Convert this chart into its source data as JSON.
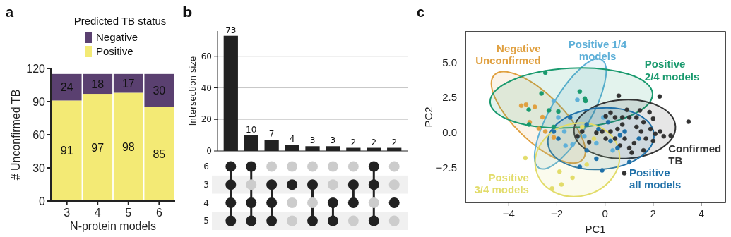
{
  "chart_data": [
    {
      "type": "bar",
      "title": "a",
      "stacked": true,
      "xlabel": "N-protein models",
      "ylabel": "# Unconfirmed TB",
      "categories": [
        "3",
        "4",
        "5",
        "6"
      ],
      "legend_title": "Predicted TB status",
      "legend": "top",
      "series": [
        {
          "name": "Positive",
          "color": "#f3ea75",
          "values": [
            91,
            97,
            98,
            85
          ]
        },
        {
          "name": "Negative",
          "color": "#5a4070",
          "values": [
            24,
            18,
            17,
            30
          ]
        }
      ],
      "ylim": [
        0,
        120
      ],
      "yticks": [
        0,
        30,
        60,
        90,
        120
      ],
      "data_labels": true
    },
    {
      "type": "bar",
      "title": "b",
      "ylabel": "Intersection size",
      "categories": [
        null,
        null,
        null,
        null,
        null,
        null,
        null,
        null,
        null
      ],
      "values": [
        73,
        10,
        7,
        4,
        3,
        3,
        2,
        2,
        2
      ],
      "color": "#222222",
      "ylim": [
        0,
        76
      ],
      "yticks": [
        0,
        20,
        40,
        60
      ],
      "grid": "y",
      "data_labels": true,
      "annotations": [
        "6",
        "3",
        "4",
        "5"
      ]
    },
    {
      "type": "scatter",
      "title": "c",
      "xlabel": "PC1",
      "ylabel": "PC2",
      "marker": "circle",
      "series": [
        {
          "name": "Negative\nUnconfirmed",
          "color": "#e0a040",
          "x": [
            -3.48,
            -3.28,
            -2.92,
            -3.13,
            -2.75,
            -2.48,
            -2.13,
            -2.6
          ],
          "values": [
            1.92,
            2.0,
            1.83,
            0.74,
            0.27,
            0.07,
            -0.35,
            1.1
          ]
        },
        {
          "name": "Positive 1/4\nmodels",
          "color": "#5fb0d8",
          "x": [
            -2.13,
            -1.94,
            -1.15,
            -1.69,
            -1.64,
            -1.35,
            -0.86,
            -0.07,
            -0.36,
            0.32
          ],
          "values": [
            2.26,
            1.08,
            2.34,
            0.07,
            -0.94,
            -0.86,
            -0.27,
            1.08,
            -0.77,
            -1.28
          ]
        },
        {
          "name": "Positive\n2/4 models",
          "color": "#1a9a6e",
          "x": [
            -2.48,
            -2.64,
            -3.17,
            -3.16,
            -2.33,
            -1.94,
            -1.05,
            -0.84,
            -0.81,
            -2.13
          ],
          "values": [
            4.28,
            2.79,
            1.63,
            0.57,
            1.58,
            1.5,
            2.93,
            2.42,
            2.26,
            0.4
          ]
        },
        {
          "name": "Confirmed\nTB",
          "color": "#333333",
          "x": [
            0.57,
            2.27,
            3.47,
            0.8,
            2.73,
            2.44,
            2.29,
            2.0,
            1.45,
            0.91,
            1.85,
            1.6,
            1.31,
            1.01,
            0.72,
            0.42,
            0.23,
            0.03,
            -0.12,
            -0.36,
            -0.66,
            -0.95,
            -1.15,
            0.23,
            0.52,
            0.82,
            1.01,
            1.21,
            1.5,
            1.7,
            1.89,
            1.6,
            1.11,
            0.62,
            0.42,
            2.09,
            0.03,
            0.72,
            1.31,
            2.0
          ],
          "values": [
            2.63,
            2.58,
            0.77,
            -2.91,
            -0.22,
            -0.27,
            0.07,
            0.99,
            1.58,
            1.62,
            1.45,
            0.74,
            0.4,
            1.08,
            0.57,
            1.08,
            1.41,
            1.16,
            0.07,
            -0.02,
            -0.69,
            0.07,
            -0.27,
            0.07,
            0.24,
            -0.44,
            -1.11,
            -0.77,
            0.07,
            -0.44,
            0.24,
            -1.28,
            -1.45,
            -0.94,
            -0.44,
            -0.1,
            -0.44,
            1.08,
            1.08,
            -0.61
          ]
        },
        {
          "name": "Positive\nall models",
          "color": "#1f70a8",
          "x": [
            -2.13,
            -1.94,
            -1.45,
            -1.05,
            -0.76,
            -0.36,
            -0.12,
            0.23,
            0.52,
            1.01,
            0.82,
            1.41,
            -0.27,
            0.13,
            0.62,
            -0.76
          ],
          "values": [
            0.07,
            -0.44,
            1.08,
            -2.46,
            -1.28,
            -1.87,
            -2.71,
            -0.61,
            -1.11,
            -2.12,
            0.07,
            -0.44,
            0.24,
            0.74,
            -0.19,
            0.57
          ]
        },
        {
          "name": "Positive\n3/4 models",
          "color": "#e2dc6a",
          "x": [
            -3.31,
            -1.89,
            -1.81,
            -2.2,
            -1.35,
            -0.76,
            -0.46,
            -0.95
          ],
          "values": [
            -1.82,
            -2.8,
            -3.72,
            -4.0,
            -3.23,
            -2.29,
            -0.44,
            0.4
          ]
        }
      ],
      "xlim": [
        -5.8,
        5.0
      ],
      "xticks": [
        {
          "value": -4,
          "label": "−4"
        },
        {
          "value": -2,
          "label": "−2"
        },
        0,
        2,
        {
          "value": 4,
          "label": "4"
        }
      ],
      "ylim": [
        -5.0,
        7.2
      ],
      "yticks": [
        {
          "value": -2.5,
          "label": "−2.5"
        },
        {
          "value": 0,
          "label": "0.0"
        },
        {
          "value": 2.5,
          "label": "2.5"
        },
        {
          "value": 5,
          "label": "5.0"
        }
      ]
    }
  ]
}
